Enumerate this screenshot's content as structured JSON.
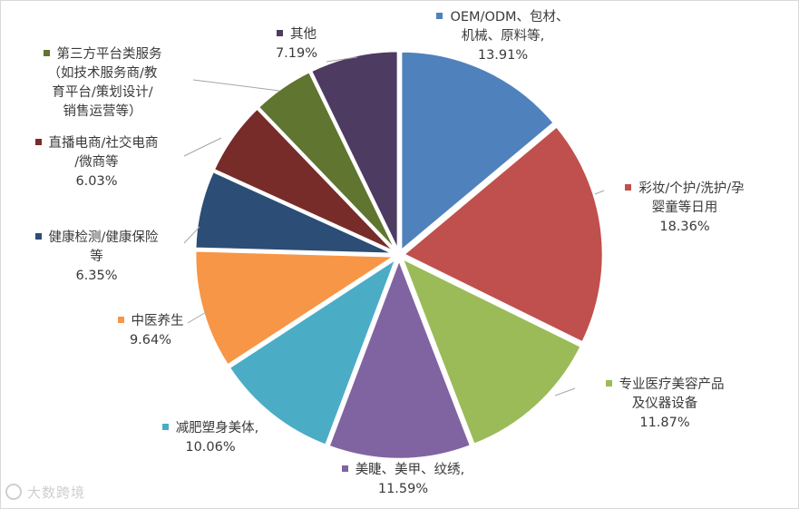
{
  "chart_data": {
    "type": "pie",
    "title": "",
    "slices": [
      {
        "label": "OEM/ODM、包材、机械、原料等,",
        "lines": [
          "OEM/ODM、包材、",
          "机械、原料等,"
        ],
        "value": 13.91,
        "pct_label": "13.91%",
        "color": "#4f81bd"
      },
      {
        "label": "彩妆/个护/洗护/孕婴童等日用",
        "lines": [
          "彩妆/个护/洗护/孕",
          "婴童等日用"
        ],
        "value": 18.36,
        "pct_label": "18.36%",
        "color": "#c0504d"
      },
      {
        "label": "专业医疗美容产品及仪器设备",
        "lines": [
          "专业医疗美容产品",
          "及仪器设备"
        ],
        "value": 11.87,
        "pct_label": "11.87%",
        "color": "#9bbb59"
      },
      {
        "label": "美睫、美甲、纹绣,",
        "lines": [
          "美睫、美甲、纹绣,"
        ],
        "value": 11.59,
        "pct_label": "11.59%",
        "color": "#8064a2"
      },
      {
        "label": "减肥塑身美体,",
        "lines": [
          "减肥塑身美体,"
        ],
        "value": 10.06,
        "pct_label": "10.06%",
        "color": "#4bacc6"
      },
      {
        "label": "中医养生",
        "lines": [
          "中医养生"
        ],
        "value": 9.64,
        "pct_label": "9.64%",
        "color": "#f79646"
      },
      {
        "label": "健康检测/健康保险等",
        "lines": [
          "健康检测/健康保险",
          "等"
        ],
        "value": 6.35,
        "pct_label": "6.35%",
        "color": "#2c4d75"
      },
      {
        "label": "直播电商/社交电商/微商等",
        "lines": [
          "直播电商/社交电商",
          "/微商等"
        ],
        "value": 6.03,
        "pct_label": "6.03%",
        "color": "#772c2a"
      },
      {
        "label": "第三方平台类服务（如技术服务商/教育平台/策划设计/销售运营等）",
        "lines": [
          "第三方平台类服务",
          "（如技术服务商/教",
          "育平台/策划设计/",
          "销售运营等）"
        ],
        "value": 4.99,
        "pct_label": "",
        "color": "#5f7530"
      },
      {
        "label": "其他",
        "lines": [
          "其他"
        ],
        "value": 7.19,
        "pct_label": "7.19%",
        "color": "#4d3b62"
      }
    ]
  },
  "watermark": {
    "text": "大数跨境"
  }
}
